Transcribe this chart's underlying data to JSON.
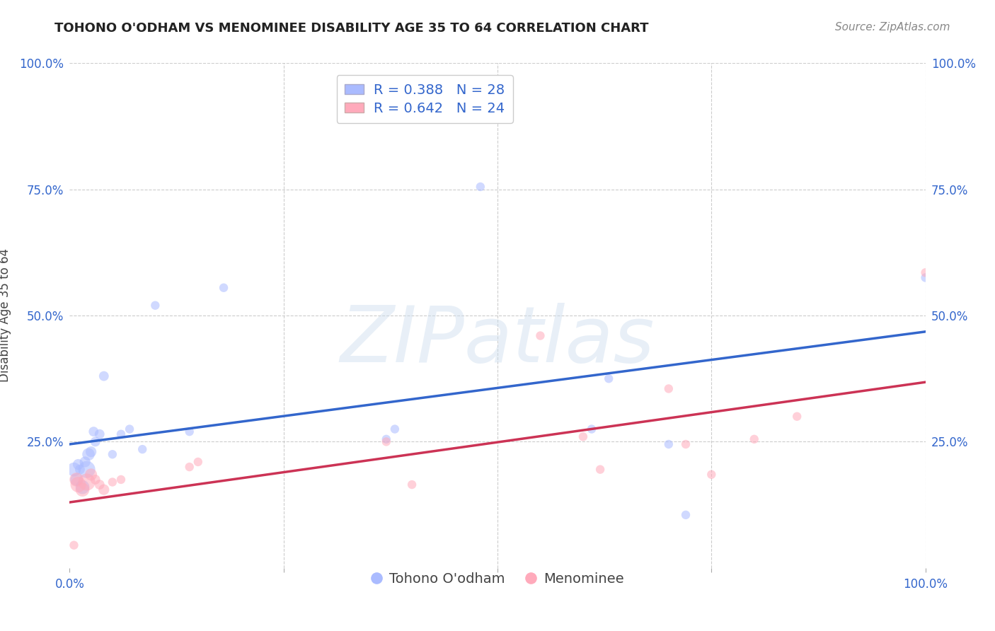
{
  "title": "TOHONO O'ODHAM VS MENOMINEE DISABILITY AGE 35 TO 64 CORRELATION CHART",
  "source": "Source: ZipAtlas.com",
  "ylabel": "Disability Age 35 to 64",
  "watermark": "ZIPatlas",
  "blue_R": 0.388,
  "blue_N": 28,
  "pink_R": 0.642,
  "pink_N": 24,
  "blue_label": "Tohono O'odham",
  "pink_label": "Menominee",
  "blue_color": "#aabbff",
  "pink_color": "#ffaabb",
  "blue_line_color": "#3366cc",
  "pink_line_color": "#cc3355",
  "xlim": [
    0.0,
    1.0
  ],
  "ylim": [
    0.0,
    1.0
  ],
  "blue_x": [
    0.005,
    0.008,
    0.01,
    0.012,
    0.015,
    0.018,
    0.02,
    0.022,
    0.025,
    0.028,
    0.03,
    0.035,
    0.04,
    0.05,
    0.06,
    0.07,
    0.085,
    0.1,
    0.14,
    0.18,
    0.37,
    0.38,
    0.48,
    0.61,
    0.63,
    0.7,
    0.72,
    1.0
  ],
  "blue_y": [
    0.195,
    0.175,
    0.205,
    0.195,
    0.16,
    0.21,
    0.195,
    0.225,
    0.23,
    0.27,
    0.25,
    0.265,
    0.38,
    0.225,
    0.265,
    0.275,
    0.235,
    0.52,
    0.27,
    0.555,
    0.255,
    0.275,
    0.755,
    0.275,
    0.375,
    0.245,
    0.105,
    0.575
  ],
  "blue_sizes": [
    200,
    160,
    120,
    100,
    200,
    120,
    300,
    160,
    120,
    100,
    100,
    100,
    100,
    80,
    80,
    80,
    80,
    80,
    80,
    80,
    80,
    80,
    80,
    80,
    80,
    80,
    80,
    80
  ],
  "pink_x": [
    0.005,
    0.008,
    0.01,
    0.015,
    0.02,
    0.025,
    0.03,
    0.035,
    0.04,
    0.05,
    0.06,
    0.14,
    0.15,
    0.37,
    0.4,
    0.55,
    0.6,
    0.62,
    0.7,
    0.72,
    0.75,
    0.8,
    0.85,
    1.0
  ],
  "pink_y": [
    0.045,
    0.175,
    0.165,
    0.155,
    0.17,
    0.185,
    0.175,
    0.165,
    0.155,
    0.17,
    0.175,
    0.2,
    0.21,
    0.25,
    0.165,
    0.46,
    0.26,
    0.195,
    0.355,
    0.245,
    0.185,
    0.255,
    0.3,
    0.585
  ],
  "pink_sizes": [
    80,
    200,
    250,
    200,
    300,
    150,
    100,
    100,
    120,
    80,
    80,
    80,
    80,
    80,
    80,
    80,
    80,
    80,
    80,
    80,
    80,
    80,
    80,
    80
  ],
  "blue_trend_y0": 0.245,
  "blue_trend_y1": 0.468,
  "pink_trend_y0": 0.13,
  "pink_trend_y1": 0.368,
  "background_color": "#ffffff",
  "grid_color": "#cccccc",
  "tick_label_color": "#3366cc",
  "title_fontsize": 13,
  "source_fontsize": 11,
  "axis_label_fontsize": 12,
  "tick_fontsize": 12,
  "legend_fontsize": 14
}
